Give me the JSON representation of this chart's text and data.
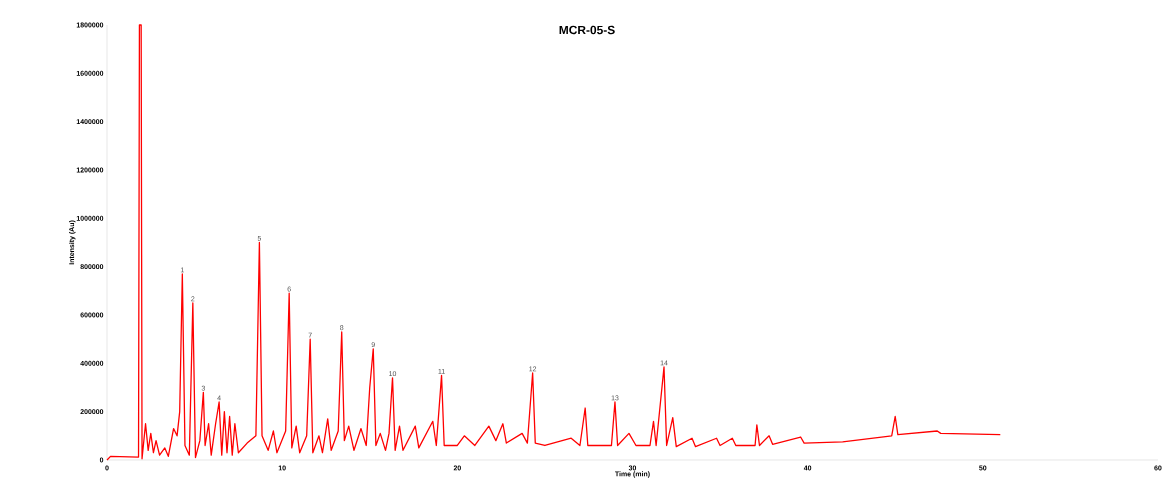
{
  "chart_data": {
    "type": "line",
    "title": "MCR-05-S",
    "xlabel": "Time (min)",
    "ylabel": "Intensity (Au)",
    "color": "#ff0000",
    "xlim": [
      0,
      60
    ],
    "ylim": [
      0,
      1800000
    ],
    "xticks": [
      0,
      10,
      20,
      30,
      40,
      50,
      60
    ],
    "yticks": [
      0,
      200000,
      400000,
      600000,
      800000,
      1000000,
      1200000,
      1400000,
      1600000,
      1800000
    ],
    "x": [
      0,
      0.2,
      1.8,
      1.85,
      1.95,
      2.0,
      2.2,
      2.35,
      2.5,
      2.65,
      2.8,
      3.0,
      3.3,
      3.5,
      3.8,
      4.0,
      4.15,
      4.3,
      4.45,
      4.7,
      4.9,
      5.05,
      5.3,
      5.5,
      5.6,
      5.8,
      5.95,
      6.2,
      6.4,
      6.55,
      6.7,
      6.85,
      7.0,
      7.15,
      7.3,
      7.5,
      8.0,
      8.5,
      8.7,
      8.85,
      9.2,
      9.5,
      9.7,
      10.2,
      10.4,
      10.55,
      10.8,
      11.0,
      11.4,
      11.6,
      11.75,
      12.1,
      12.3,
      12.6,
      12.8,
      13.2,
      13.4,
      13.55,
      13.8,
      14.1,
      14.5,
      14.8,
      15.0,
      15.2,
      15.35,
      15.6,
      15.9,
      16.1,
      16.3,
      16.45,
      16.7,
      16.9,
      17.6,
      17.8,
      18.6,
      18.8,
      19.1,
      19.25,
      20.0,
      20.4,
      21.0,
      21.8,
      22.2,
      22.6,
      22.8,
      23.7,
      24.0,
      24.3,
      24.45,
      25.0,
      26.5,
      27.0,
      27.3,
      27.45,
      28.8,
      29.0,
      29.15,
      29.8,
      30.2,
      31.0,
      31.2,
      31.35,
      31.8,
      31.95,
      32.3,
      32.5,
      33.4,
      33.6,
      34.8,
      35.0,
      35.7,
      35.9,
      37.0,
      37.1,
      37.25,
      37.8,
      38.0,
      39.6,
      39.8,
      42.0,
      44.8,
      45.0,
      45.15,
      47.4,
      47.6,
      51.0
    ],
    "values": [
      0,
      15000,
      12000,
      1800000,
      1800000,
      5000,
      150000,
      40000,
      110000,
      30000,
      80000,
      20000,
      50000,
      15000,
      130000,
      100000,
      200000,
      770000,
      60000,
      20000,
      650000,
      10000,
      80000,
      280000,
      60000,
      150000,
      20000,
      150000,
      240000,
      20000,
      200000,
      30000,
      180000,
      20000,
      150000,
      30000,
      70000,
      100000,
      900000,
      100000,
      40000,
      120000,
      30000,
      120000,
      690000,
      50000,
      140000,
      30000,
      100000,
      500000,
      30000,
      100000,
      30000,
      170000,
      40000,
      120000,
      530000,
      80000,
      140000,
      40000,
      130000,
      60000,
      300000,
      460000,
      60000,
      110000,
      40000,
      110000,
      340000,
      40000,
      140000,
      40000,
      140000,
      50000,
      160000,
      60000,
      350000,
      60000,
      60000,
      100000,
      60000,
      140000,
      80000,
      150000,
      70000,
      110000,
      70000,
      360000,
      70000,
      60000,
      90000,
      60000,
      215000,
      60000,
      60000,
      240000,
      60000,
      110000,
      60000,
      60000,
      160000,
      60000,
      385000,
      60000,
      175000,
      55000,
      90000,
      55000,
      90000,
      60000,
      90000,
      60000,
      60000,
      145000,
      60000,
      100000,
      65000,
      95000,
      70000,
      75000,
      100000,
      180000,
      105000,
      120000,
      110000,
      105000
    ],
    "annotations": [
      {
        "text": "1",
        "x": 4.3,
        "y": 770000
      },
      {
        "text": "2",
        "x": 4.9,
        "y": 650000
      },
      {
        "text": "3",
        "x": 5.5,
        "y": 280000
      },
      {
        "text": "4",
        "x": 6.4,
        "y": 240000
      },
      {
        "text": "5",
        "x": 8.7,
        "y": 900000
      },
      {
        "text": "6",
        "x": 10.4,
        "y": 690000
      },
      {
        "text": "7",
        "x": 11.6,
        "y": 500000
      },
      {
        "text": "8",
        "x": 13.4,
        "y": 530000
      },
      {
        "text": "9",
        "x": 15.2,
        "y": 460000
      },
      {
        "text": "10",
        "x": 16.3,
        "y": 340000
      },
      {
        "text": "11",
        "x": 19.1,
        "y": 350000
      },
      {
        "text": "12",
        "x": 24.3,
        "y": 360000
      },
      {
        "text": "13",
        "x": 29.0,
        "y": 240000
      },
      {
        "text": "14",
        "x": 31.8,
        "y": 385000
      }
    ]
  }
}
